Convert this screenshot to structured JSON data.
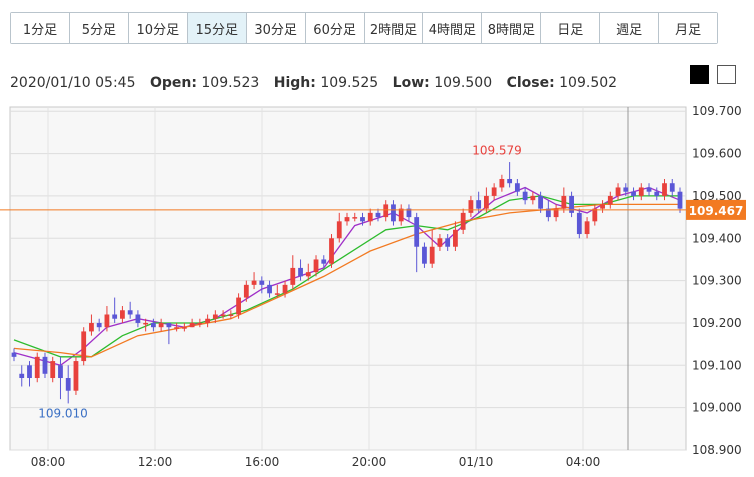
{
  "tabs": [
    {
      "label": "1分足",
      "active": false
    },
    {
      "label": "5分足",
      "active": false
    },
    {
      "label": "10分足",
      "active": false
    },
    {
      "label": "15分足",
      "active": true
    },
    {
      "label": "30分足",
      "active": false
    },
    {
      "label": "60分足",
      "active": false
    },
    {
      "label": "2時間足",
      "active": false
    },
    {
      "label": "4時間足",
      "active": false
    },
    {
      "label": "8時間足",
      "active": false
    },
    {
      "label": "日足",
      "active": false
    },
    {
      "label": "週足",
      "active": false
    },
    {
      "label": "月足",
      "active": false
    }
  ],
  "ohlc": {
    "datetime": "2020/01/10 05:45",
    "open_label": "Open:",
    "open": "109.523",
    "high_label": "High:",
    "high": "109.525",
    "low_label": "Low:",
    "low": "109.500",
    "close_label": "Close:",
    "close": "109.502"
  },
  "colors": {
    "up": "#e8413c",
    "down": "#5b57d6",
    "ma_short": "#a030c8",
    "ma_mid": "#2dbb2d",
    "ma_long": "#f27a22",
    "price_line": "#f27a22",
    "max_label": "#e8413c",
    "min_label": "#3a6fc4"
  },
  "chart_data": {
    "type": "candlestick",
    "x_ticks": [
      "08:00",
      "12:00",
      "16:00",
      "20:00",
      "01/10",
      "04:00"
    ],
    "y_ticks": [
      "109.700",
      "109.600",
      "109.500",
      "109.400",
      "109.300",
      "109.200",
      "109.100",
      "109.000",
      "108.900"
    ],
    "ylim": [
      108.9,
      109.71
    ],
    "max_label": "109.579",
    "min_label": "109.010",
    "current_price": "109.467",
    "grid": true,
    "candles": [
      [
        109.13,
        109.12,
        109.14,
        109.11
      ],
      [
        109.08,
        109.07,
        109.1,
        109.05
      ],
      [
        109.1,
        109.07,
        109.11,
        109.05
      ],
      [
        109.07,
        109.12,
        109.13,
        109.06
      ],
      [
        109.12,
        109.08,
        109.13,
        109.07
      ],
      [
        109.07,
        109.11,
        109.12,
        109.06
      ],
      [
        109.1,
        109.07,
        109.12,
        109.02
      ],
      [
        109.07,
        109.04,
        109.1,
        109.01
      ],
      [
        109.04,
        109.11,
        109.12,
        109.03
      ],
      [
        109.11,
        109.18,
        109.19,
        109.1
      ],
      [
        109.18,
        109.2,
        109.22,
        109.17
      ],
      [
        109.2,
        109.19,
        109.21,
        109.18
      ],
      [
        109.19,
        109.22,
        109.24,
        109.18
      ],
      [
        109.22,
        109.21,
        109.26,
        109.2
      ],
      [
        109.21,
        109.23,
        109.24,
        109.2
      ],
      [
        109.23,
        109.22,
        109.25,
        109.21
      ],
      [
        109.22,
        109.2,
        109.23,
        109.19
      ],
      [
        109.2,
        109.2,
        109.21,
        109.18
      ],
      [
        109.2,
        109.19,
        109.21,
        109.18
      ],
      [
        109.19,
        109.2,
        109.21,
        109.18
      ],
      [
        109.2,
        109.19,
        109.2,
        109.15
      ],
      [
        109.19,
        109.19,
        109.2,
        109.18
      ],
      [
        109.19,
        109.19,
        109.2,
        109.18
      ],
      [
        109.19,
        109.2,
        109.21,
        109.19
      ],
      [
        109.2,
        109.2,
        109.21,
        109.19
      ],
      [
        109.2,
        109.21,
        109.22,
        109.19
      ],
      [
        109.21,
        109.22,
        109.23,
        109.2
      ],
      [
        109.22,
        109.22,
        109.23,
        109.21
      ],
      [
        109.22,
        109.22,
        109.23,
        109.21
      ],
      [
        109.22,
        109.26,
        109.27,
        109.21
      ],
      [
        109.26,
        109.29,
        109.3,
        109.25
      ],
      [
        109.29,
        109.3,
        109.32,
        109.28
      ],
      [
        109.3,
        109.29,
        109.31,
        109.27
      ],
      [
        109.29,
        109.27,
        109.3,
        109.26
      ],
      [
        109.27,
        109.27,
        109.29,
        109.26
      ],
      [
        109.27,
        109.29,
        109.3,
        109.26
      ],
      [
        109.29,
        109.33,
        109.36,
        109.28
      ],
      [
        109.33,
        109.31,
        109.35,
        109.3
      ],
      [
        109.31,
        109.32,
        109.34,
        109.3
      ],
      [
        109.32,
        109.35,
        109.36,
        109.31
      ],
      [
        109.35,
        109.34,
        109.36,
        109.33
      ],
      [
        109.34,
        109.4,
        109.41,
        109.33
      ],
      [
        109.4,
        109.44,
        109.46,
        109.39
      ],
      [
        109.44,
        109.45,
        109.46,
        109.43
      ],
      [
        109.45,
        109.45,
        109.46,
        109.44
      ],
      [
        109.45,
        109.44,
        109.46,
        109.43
      ],
      [
        109.44,
        109.46,
        109.47,
        109.43
      ],
      [
        109.46,
        109.45,
        109.47,
        109.44
      ],
      [
        109.45,
        109.48,
        109.49,
        109.44
      ],
      [
        109.48,
        109.44,
        109.49,
        109.43
      ],
      [
        109.44,
        109.47,
        109.48,
        109.43
      ],
      [
        109.47,
        109.45,
        109.48,
        109.44
      ],
      [
        109.45,
        109.38,
        109.46,
        109.32
      ],
      [
        109.38,
        109.34,
        109.39,
        109.33
      ],
      [
        109.34,
        109.38,
        109.42,
        109.33
      ],
      [
        109.38,
        109.4,
        109.41,
        109.37
      ],
      [
        109.4,
        109.38,
        109.41,
        109.37
      ],
      [
        109.38,
        109.42,
        109.44,
        109.37
      ],
      [
        109.42,
        109.46,
        109.47,
        109.41
      ],
      [
        109.46,
        109.49,
        109.5,
        109.45
      ],
      [
        109.49,
        109.47,
        109.51,
        109.46
      ],
      [
        109.47,
        109.5,
        109.52,
        109.46
      ],
      [
        109.5,
        109.52,
        109.53,
        109.49
      ],
      [
        109.52,
        109.54,
        109.55,
        109.51
      ],
      [
        109.54,
        109.53,
        109.58,
        109.52
      ],
      [
        109.53,
        109.51,
        109.54,
        109.5
      ],
      [
        109.51,
        109.49,
        109.52,
        109.48
      ],
      [
        109.49,
        109.5,
        109.51,
        109.48
      ],
      [
        109.5,
        109.47,
        109.51,
        109.46
      ],
      [
        109.47,
        109.45,
        109.49,
        109.44
      ],
      [
        109.45,
        109.47,
        109.48,
        109.44
      ],
      [
        109.47,
        109.5,
        109.52,
        109.46
      ],
      [
        109.5,
        109.46,
        109.51,
        109.45
      ],
      [
        109.46,
        109.41,
        109.47,
        109.4
      ],
      [
        109.41,
        109.44,
        109.45,
        109.4
      ],
      [
        109.44,
        109.47,
        109.48,
        109.43
      ],
      [
        109.47,
        109.48,
        109.49,
        109.46
      ],
      [
        109.48,
        109.5,
        109.51,
        109.47
      ],
      [
        109.5,
        109.52,
        109.53,
        109.49
      ],
      [
        109.52,
        109.51,
        109.53,
        109.5
      ],
      [
        109.51,
        109.5,
        109.52,
        109.49
      ],
      [
        109.5,
        109.52,
        109.53,
        109.49
      ],
      [
        109.52,
        109.51,
        109.53,
        109.5
      ],
      [
        109.51,
        109.5,
        109.52,
        109.49
      ],
      [
        109.5,
        109.53,
        109.54,
        109.49
      ],
      [
        109.53,
        109.51,
        109.54,
        109.5
      ],
      [
        109.51,
        109.47,
        109.52,
        109.46
      ]
    ],
    "ma": [
      {
        "name": "",
        "color_key": "ma_short",
        "values": [
          [
            0,
            109.13
          ],
          [
            6,
            109.1
          ],
          [
            9,
            109.14
          ],
          [
            12,
            109.19
          ],
          [
            16,
            109.21
          ],
          [
            22,
            109.19
          ],
          [
            26,
            109.21
          ],
          [
            32,
            109.28
          ],
          [
            40,
            109.33
          ],
          [
            44,
            109.43
          ],
          [
            49,
            109.46
          ],
          [
            52,
            109.43
          ],
          [
            55,
            109.38
          ],
          [
            58,
            109.43
          ],
          [
            62,
            109.49
          ],
          [
            66,
            109.52
          ],
          [
            70,
            109.48
          ],
          [
            74,
            109.46
          ],
          [
            78,
            109.5
          ],
          [
            82,
            109.52
          ],
          [
            86,
            109.49
          ]
        ]
      },
      {
        "name": "",
        "color_key": "ma_mid",
        "values": [
          [
            0,
            109.16
          ],
          [
            6,
            109.12
          ],
          [
            10,
            109.12
          ],
          [
            14,
            109.17
          ],
          [
            18,
            109.2
          ],
          [
            24,
            109.2
          ],
          [
            30,
            109.23
          ],
          [
            36,
            109.28
          ],
          [
            42,
            109.35
          ],
          [
            48,
            109.42
          ],
          [
            52,
            109.43
          ],
          [
            56,
            109.42
          ],
          [
            60,
            109.45
          ],
          [
            64,
            109.49
          ],
          [
            68,
            109.5
          ],
          [
            72,
            109.48
          ],
          [
            76,
            109.48
          ],
          [
            80,
            109.5
          ],
          [
            86,
            109.5
          ]
        ]
      },
      {
        "name": "",
        "color_key": "ma_long",
        "values": [
          [
            0,
            109.14
          ],
          [
            6,
            109.13
          ],
          [
            10,
            109.12
          ],
          [
            16,
            109.17
          ],
          [
            22,
            109.19
          ],
          [
            28,
            109.21
          ],
          [
            34,
            109.26
          ],
          [
            40,
            109.31
          ],
          [
            46,
            109.37
          ],
          [
            52,
            109.41
          ],
          [
            58,
            109.44
          ],
          [
            64,
            109.46
          ],
          [
            70,
            109.47
          ],
          [
            76,
            109.48
          ],
          [
            80,
            109.48
          ],
          [
            86,
            109.48
          ]
        ]
      }
    ]
  }
}
